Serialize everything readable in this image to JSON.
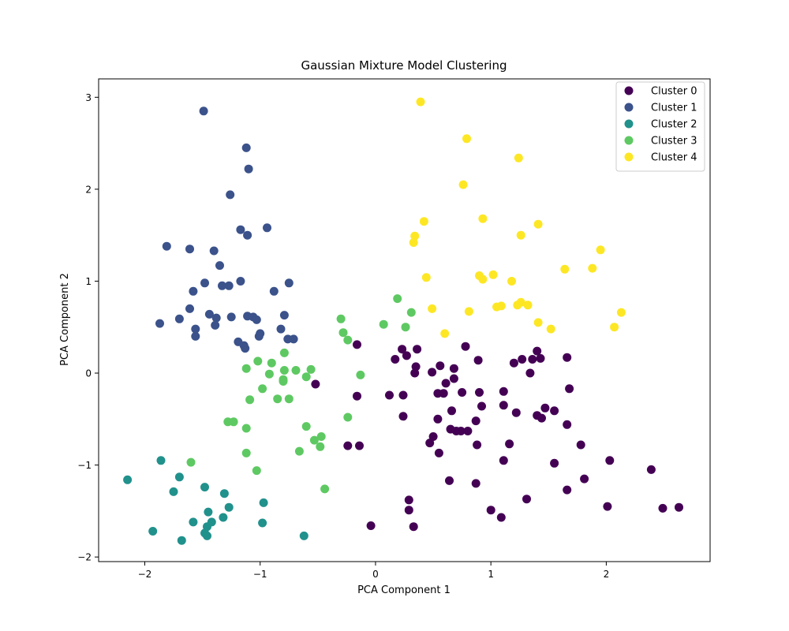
{
  "chart_data": {
    "type": "scatter",
    "title": "Gaussian Mixture Model Clustering",
    "xlabel": "PCA Component 1",
    "ylabel": "PCA Component 2",
    "xlim": [
      -2.4,
      2.9
    ],
    "ylim": [
      -2.05,
      3.2
    ],
    "xticks": [
      -2,
      -1,
      0,
      1,
      2
    ],
    "yticks": [
      -2,
      -1,
      0,
      1,
      2,
      3
    ],
    "xtick_labels": [
      "−2",
      "−1",
      "0",
      "1",
      "2"
    ],
    "ytick_labels": [
      "−2",
      "−1",
      "0",
      "1",
      "2",
      "3"
    ],
    "grid": false,
    "legend_position": "top-right",
    "series": [
      {
        "name": "Cluster 0",
        "color": "#440154",
        "points": [
          [
            -0.16,
            0.31
          ],
          [
            0.23,
            0.26
          ],
          [
            0.36,
            0.26
          ],
          [
            0.78,
            0.29
          ],
          [
            0.17,
            0.15
          ],
          [
            0.27,
            0.19
          ],
          [
            0.56,
            0.08
          ],
          [
            0.35,
            0.07
          ],
          [
            0.49,
            0.01
          ],
          [
            0.68,
            0.05
          ],
          [
            0.34,
            0.0
          ],
          [
            0.89,
            0.14
          ],
          [
            1.2,
            0.11
          ],
          [
            1.27,
            0.15
          ],
          [
            1.36,
            0.15
          ],
          [
            1.4,
            0.24
          ],
          [
            1.43,
            0.16
          ],
          [
            1.66,
            0.17
          ],
          [
            1.34,
            0.0
          ],
          [
            0.68,
            -0.06
          ],
          [
            0.61,
            -0.11
          ],
          [
            -0.52,
            -0.12
          ],
          [
            -0.16,
            -0.25
          ],
          [
            0.12,
            -0.24
          ],
          [
            0.24,
            -0.24
          ],
          [
            0.54,
            -0.22
          ],
          [
            0.59,
            -0.22
          ],
          [
            0.75,
            -0.21
          ],
          [
            0.9,
            -0.21
          ],
          [
            1.11,
            -0.2
          ],
          [
            1.68,
            -0.17
          ],
          [
            0.92,
            -0.36
          ],
          [
            1.11,
            -0.35
          ],
          [
            1.47,
            -0.38
          ],
          [
            1.55,
            -0.41
          ],
          [
            0.24,
            -0.47
          ],
          [
            0.54,
            -0.5
          ],
          [
            0.66,
            -0.41
          ],
          [
            0.87,
            -0.52
          ],
          [
            1.22,
            -0.43
          ],
          [
            1.4,
            -0.46
          ],
          [
            1.44,
            -0.49
          ],
          [
            1.66,
            -0.56
          ],
          [
            0.65,
            -0.61
          ],
          [
            0.7,
            -0.63
          ],
          [
            0.74,
            -0.63
          ],
          [
            0.8,
            -0.63
          ],
          [
            0.5,
            -0.69
          ],
          [
            0.47,
            -0.76
          ],
          [
            0.55,
            -0.87
          ],
          [
            0.88,
            -0.78
          ],
          [
            1.16,
            -0.77
          ],
          [
            1.78,
            -0.78
          ],
          [
            -0.24,
            -0.79
          ],
          [
            -0.14,
            -0.79
          ],
          [
            1.11,
            -0.95
          ],
          [
            1.55,
            -0.98
          ],
          [
            2.03,
            -0.95
          ],
          [
            2.39,
            -1.05
          ],
          [
            0.64,
            -1.17
          ],
          [
            0.87,
            -1.2
          ],
          [
            1.81,
            -1.15
          ],
          [
            1.66,
            -1.27
          ],
          [
            0.29,
            -1.38
          ],
          [
            1.31,
            -1.37
          ],
          [
            0.29,
            -1.49
          ],
          [
            1.0,
            -1.49
          ],
          [
            1.09,
            -1.57
          ],
          [
            2.01,
            -1.45
          ],
          [
            2.49,
            -1.47
          ],
          [
            2.63,
            -1.46
          ],
          [
            -0.04,
            -1.66
          ],
          [
            0.33,
            -1.67
          ]
        ]
      },
      {
        "name": "Cluster 1",
        "color": "#3b528b",
        "points": [
          [
            -1.49,
            2.85
          ],
          [
            -1.12,
            2.45
          ],
          [
            -1.1,
            2.22
          ],
          [
            -1.26,
            1.94
          ],
          [
            -1.17,
            1.56
          ],
          [
            -1.11,
            1.5
          ],
          [
            -0.94,
            1.58
          ],
          [
            -1.81,
            1.38
          ],
          [
            -1.61,
            1.35
          ],
          [
            -1.4,
            1.33
          ],
          [
            -1.35,
            1.17
          ],
          [
            -1.48,
            0.98
          ],
          [
            -1.27,
            0.95
          ],
          [
            -1.33,
            0.95
          ],
          [
            -1.17,
            1.0
          ],
          [
            -0.75,
            0.98
          ],
          [
            -1.58,
            0.89
          ],
          [
            -0.88,
            0.89
          ],
          [
            -1.61,
            0.7
          ],
          [
            -1.7,
            0.59
          ],
          [
            -1.44,
            0.64
          ],
          [
            -1.38,
            0.6
          ],
          [
            -1.25,
            0.61
          ],
          [
            -1.11,
            0.62
          ],
          [
            -1.06,
            0.61
          ],
          [
            -1.03,
            0.58
          ],
          [
            -0.79,
            0.63
          ],
          [
            -1.87,
            0.54
          ],
          [
            -1.39,
            0.52
          ],
          [
            -1.56,
            0.48
          ],
          [
            -0.82,
            0.48
          ],
          [
            -1.56,
            0.4
          ],
          [
            -1.0,
            0.43
          ],
          [
            -1.01,
            0.4
          ],
          [
            -0.76,
            0.37
          ],
          [
            -0.71,
            0.37
          ],
          [
            -1.19,
            0.34
          ],
          [
            -1.14,
            0.3
          ],
          [
            -1.13,
            0.27
          ]
        ]
      },
      {
        "name": "Cluster 2",
        "color": "#21918c",
        "points": [
          [
            -2.15,
            -1.16
          ],
          [
            -1.86,
            -0.95
          ],
          [
            -1.7,
            -1.13
          ],
          [
            -1.75,
            -1.29
          ],
          [
            -1.48,
            -1.24
          ],
          [
            -1.31,
            -1.31
          ],
          [
            -1.27,
            -1.46
          ],
          [
            -1.45,
            -1.51
          ],
          [
            -0.97,
            -1.41
          ],
          [
            -1.58,
            -1.62
          ],
          [
            -1.42,
            -1.62
          ],
          [
            -1.32,
            -1.57
          ],
          [
            -0.98,
            -1.63
          ],
          [
            -1.46,
            -1.67
          ],
          [
            -1.93,
            -1.72
          ],
          [
            -1.48,
            -1.74
          ],
          [
            -1.46,
            -1.77
          ],
          [
            -0.62,
            -1.77
          ],
          [
            -1.68,
            -1.82
          ]
        ]
      },
      {
        "name": "Cluster 3",
        "color": "#5ec962",
        "points": [
          [
            0.19,
            0.81
          ],
          [
            -0.3,
            0.59
          ],
          [
            0.07,
            0.53
          ],
          [
            0.26,
            0.5
          ],
          [
            0.31,
            0.66
          ],
          [
            -0.28,
            0.44
          ],
          [
            -0.24,
            0.36
          ],
          [
            -0.79,
            0.22
          ],
          [
            -1.02,
            0.13
          ],
          [
            -0.9,
            0.11
          ],
          [
            -1.12,
            0.05
          ],
          [
            -0.79,
            0.03
          ],
          [
            -0.69,
            0.03
          ],
          [
            -0.56,
            0.04
          ],
          [
            -0.92,
            -0.01
          ],
          [
            -0.6,
            -0.04
          ],
          [
            -0.8,
            -0.07
          ],
          [
            -0.8,
            -0.09
          ],
          [
            -0.13,
            -0.02
          ],
          [
            -0.98,
            -0.17
          ],
          [
            -0.85,
            -0.28
          ],
          [
            -0.75,
            -0.28
          ],
          [
            -1.09,
            -0.29
          ],
          [
            -1.28,
            -0.53
          ],
          [
            -1.23,
            -0.53
          ],
          [
            -0.24,
            -0.48
          ],
          [
            -1.12,
            -0.6
          ],
          [
            -0.6,
            -0.58
          ],
          [
            -0.47,
            -0.69
          ],
          [
            -0.53,
            -0.73
          ],
          [
            -0.48,
            -0.8
          ],
          [
            -1.12,
            -0.87
          ],
          [
            -0.66,
            -0.85
          ],
          [
            -1.6,
            -0.97
          ],
          [
            -1.03,
            -1.06
          ],
          [
            -0.44,
            -1.26
          ]
        ]
      },
      {
        "name": "Cluster 4",
        "color": "#fde725",
        "points": [
          [
            0.39,
            2.95
          ],
          [
            0.79,
            2.55
          ],
          [
            1.24,
            2.34
          ],
          [
            0.76,
            2.05
          ],
          [
            0.42,
            1.65
          ],
          [
            0.93,
            1.68
          ],
          [
            1.26,
            1.5
          ],
          [
            1.41,
            1.62
          ],
          [
            0.34,
            1.49
          ],
          [
            0.33,
            1.42
          ],
          [
            1.95,
            1.34
          ],
          [
            1.64,
            1.13
          ],
          [
            1.88,
            1.14
          ],
          [
            0.44,
            1.04
          ],
          [
            0.9,
            1.06
          ],
          [
            0.93,
            1.02
          ],
          [
            1.02,
            1.07
          ],
          [
            1.18,
            1.0
          ],
          [
            0.49,
            0.7
          ],
          [
            0.81,
            0.67
          ],
          [
            1.05,
            0.72
          ],
          [
            1.09,
            0.73
          ],
          [
            1.23,
            0.74
          ],
          [
            1.26,
            0.77
          ],
          [
            1.32,
            0.74
          ],
          [
            2.13,
            0.66
          ],
          [
            1.41,
            0.55
          ],
          [
            1.52,
            0.48
          ],
          [
            2.07,
            0.5
          ],
          [
            0.6,
            0.43
          ]
        ]
      }
    ]
  }
}
